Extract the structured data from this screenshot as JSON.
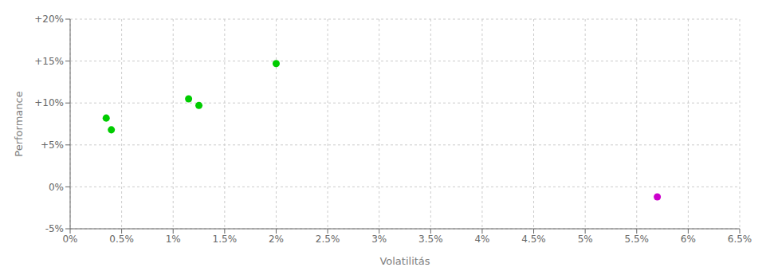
{
  "chart_data": {
    "type": "scatter",
    "xlabel": "Volatilitás",
    "ylabel": "Performance",
    "xlim": [
      0,
      0.065
    ],
    "ylim": [
      -0.05,
      0.2
    ],
    "xticks": [
      {
        "value": 0.0,
        "label": "0%"
      },
      {
        "value": 0.005,
        "label": "0.5%"
      },
      {
        "value": 0.01,
        "label": "1%"
      },
      {
        "value": 0.015,
        "label": "1.5%"
      },
      {
        "value": 0.02,
        "label": "2%"
      },
      {
        "value": 0.025,
        "label": "2.5%"
      },
      {
        "value": 0.03,
        "label": "3%"
      },
      {
        "value": 0.035,
        "label": "3.5%"
      },
      {
        "value": 0.04,
        "label": "4%"
      },
      {
        "value": 0.045,
        "label": "4.5%"
      },
      {
        "value": 0.05,
        "label": "5%"
      },
      {
        "value": 0.055,
        "label": "5.5%"
      },
      {
        "value": 0.06,
        "label": "6%"
      },
      {
        "value": 0.065,
        "label": "6.5%"
      }
    ],
    "yticks": [
      {
        "value": -0.05,
        "label": "-5%"
      },
      {
        "value": 0.0,
        "label": "0%"
      },
      {
        "value": 0.05,
        "label": "+5%"
      },
      {
        "value": 0.1,
        "label": "+10%"
      },
      {
        "value": 0.15,
        "label": "+15%"
      },
      {
        "value": 0.2,
        "label": "+20%"
      }
    ],
    "grid": true,
    "series": [
      {
        "color": "#00cc00",
        "x": [
          0.0035,
          0.004,
          0.0115,
          0.0125,
          0.02
        ],
        "values": [
          0.082,
          0.068,
          0.105,
          0.097,
          0.147
        ]
      },
      {
        "color": "#cc00cc",
        "x": [
          0.057
        ],
        "values": [
          -0.012
        ]
      }
    ]
  }
}
